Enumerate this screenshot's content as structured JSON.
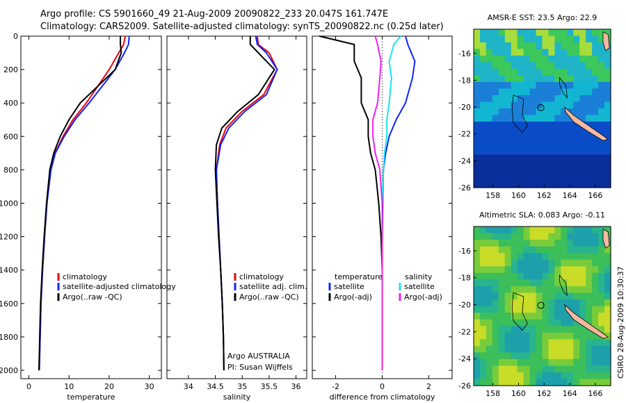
{
  "title": {
    "line1": "Argo profile: CS 5901660_49 21-Aug-2009 20090822_233 20.047S 161.747E",
    "line2": "Climatology: CARS2009. Satellite-adjusted climatology: synTS_20090822.nc (0.25d later)"
  },
  "footer": "Argo AUSTRALIA",
  "footer2": "PI: Susan Wijffels",
  "side_label": "CSIRO 28-Aug-2009 10:30:37",
  "colors": {
    "climatology": "#e8000b",
    "satellite": "#0b24fb",
    "argo": "#000000",
    "sat_salinity": "#19e3f0",
    "argo_salinity": "#f01ff0"
  },
  "chart_data": [
    {
      "type": "line",
      "xlabel": "temperature",
      "ylim": [
        0,
        2050
      ],
      "xlim": [
        -2,
        33
      ],
      "xticks": [
        0,
        10,
        20,
        30
      ],
      "yticks": [
        0,
        200,
        400,
        600,
        800,
        1000,
        1200,
        1400,
        1600,
        1800,
        2000
      ],
      "legend": [
        "climatology",
        "satellite-adjusted climatology",
        "Argo(..raw -QC)"
      ],
      "series": [
        {
          "name": "climatology",
          "x": [
            24,
            23.6,
            22.4,
            20,
            14.3,
            11,
            8.5,
            6.5,
            5.4,
            4.5,
            3.9,
            3.4,
            3,
            2.8,
            2.6
          ],
          "y": [
            0,
            50,
            100,
            200,
            400,
            500,
            600,
            700,
            800,
            1000,
            1200,
            1400,
            1600,
            1800,
            2000
          ]
        },
        {
          "name": "satellite-adjusted climatology",
          "x": [
            25,
            24.8,
            23.8,
            21.5,
            15,
            11.5,
            8.8,
            6.6,
            5.5,
            4.5,
            3.9,
            3.4,
            3,
            2.8,
            2.6
          ],
          "y": [
            0,
            50,
            100,
            200,
            400,
            500,
            600,
            700,
            800,
            1000,
            1200,
            1400,
            1600,
            1800,
            2000
          ]
        },
        {
          "name": "Argo(..raw -QC)",
          "x": [
            22.8,
            22.8,
            23,
            21.5,
            12.8,
            10,
            7.8,
            6.2,
            5.2,
            4.4,
            3.8,
            3.3,
            2.9,
            2.7,
            2.5
          ],
          "y": [
            0,
            50,
            100,
            200,
            400,
            500,
            600,
            700,
            800,
            1000,
            1200,
            1400,
            1600,
            1800,
            2000
          ]
        }
      ]
    },
    {
      "type": "line",
      "xlabel": "salinity",
      "ylim": [
        0,
        2050
      ],
      "xlim": [
        33.6,
        36.2
      ],
      "xticks": [
        34,
        34.5,
        35,
        35.5,
        36
      ],
      "legend": [
        "climatology",
        "satellite adj. clim.",
        "Argo(..raw -QC)"
      ],
      "series": [
        {
          "name": "climatology",
          "x": [
            35.28,
            35.3,
            35.5,
            35.65,
            35.4,
            35.0,
            34.7,
            34.58,
            34.52,
            34.54,
            34.57,
            34.6,
            34.63,
            34.65,
            34.66
          ],
          "y": [
            0,
            50,
            100,
            200,
            350,
            450,
            550,
            650,
            800,
            1000,
            1200,
            1400,
            1600,
            1800,
            2000
          ]
        },
        {
          "name": "satellite adj. clim.",
          "x": [
            35.25,
            35.28,
            35.45,
            35.65,
            35.45,
            35.05,
            34.75,
            34.6,
            34.52,
            34.54,
            34.57,
            34.6,
            34.63,
            34.65,
            34.66
          ],
          "y": [
            0,
            50,
            100,
            200,
            350,
            450,
            550,
            650,
            800,
            1000,
            1200,
            1400,
            1600,
            1800,
            2000
          ]
        },
        {
          "name": "Argo(..raw -QC)",
          "x": [
            35.15,
            35.15,
            35.3,
            35.6,
            35.3,
            34.92,
            34.62,
            34.52,
            34.5,
            34.53,
            34.56,
            34.6,
            34.63,
            34.65,
            34.66
          ],
          "y": [
            0,
            50,
            100,
            200,
            350,
            450,
            550,
            650,
            800,
            1000,
            1200,
            1400,
            1600,
            1800,
            2000
          ]
        }
      ]
    },
    {
      "type": "line",
      "xlabel": "difference from climatology",
      "ylim": [
        0,
        2050
      ],
      "xlim": [
        -3,
        3
      ],
      "xticks": [
        -2,
        0,
        2
      ],
      "legend": [
        "temperature",
        "satellite",
        "Argo(-adj)",
        "salinity",
        "satellite",
        "Argo(-adj)"
      ],
      "series": [
        {
          "name": "temperature satellite",
          "x": [
            1,
            1.1,
            1.4,
            1.3,
            1.0,
            0.6,
            0.3,
            0.15,
            0.05,
            0.02,
            0.0,
            0.0,
            0.0,
            0.0
          ],
          "y": [
            0,
            50,
            150,
            250,
            400,
            500,
            600,
            700,
            800,
            1000,
            1200,
            1400,
            1600,
            2000
          ]
        },
        {
          "name": "temperature Argo(-adj)",
          "x": [
            -2.7,
            -1.2,
            -1.2,
            -0.9,
            -0.9,
            -0.6,
            -0.6,
            -0.5,
            -0.3,
            -0.15,
            -0.05,
            0.0,
            0.0,
            0.0
          ],
          "y": [
            0,
            50,
            150,
            250,
            400,
            500,
            600,
            700,
            800,
            1000,
            1200,
            1400,
            1600,
            2000
          ]
        },
        {
          "name": "salinity satellite",
          "x": [
            0.8,
            0.5,
            0.3,
            0.4,
            0.3,
            0.2,
            0.2,
            0.1,
            0.05,
            0.0,
            0.0,
            0.0,
            0.0,
            0.0
          ],
          "y": [
            0,
            50,
            150,
            250,
            400,
            500,
            600,
            700,
            800,
            1000,
            1200,
            1400,
            1600,
            2000
          ]
        },
        {
          "name": "salinity Argo(-adj)",
          "x": [
            -0.3,
            -0.2,
            -0.05,
            -0.1,
            -0.2,
            -0.4,
            -0.4,
            -0.3,
            -0.1,
            0.0,
            0.0,
            0.0,
            0.0,
            0.0
          ],
          "y": [
            0,
            50,
            150,
            250,
            400,
            500,
            600,
            700,
            800,
            1000,
            1200,
            1400,
            1600,
            2000
          ]
        }
      ]
    },
    {
      "type": "heatmap",
      "title": "AMSR-E SST: 23.5 Argo: 22.9",
      "xticks": [
        158,
        160,
        162,
        164,
        166
      ],
      "yticks": [
        -16,
        -18,
        -20,
        -22,
        -24,
        -26
      ]
    },
    {
      "type": "heatmap",
      "title": "Altimetric SLA: 0.083 Argo: -0.11",
      "xticks": [
        158,
        160,
        162,
        164,
        166
      ],
      "yticks": [
        -16,
        -18,
        -20,
        -22,
        -24,
        -26
      ]
    }
  ]
}
